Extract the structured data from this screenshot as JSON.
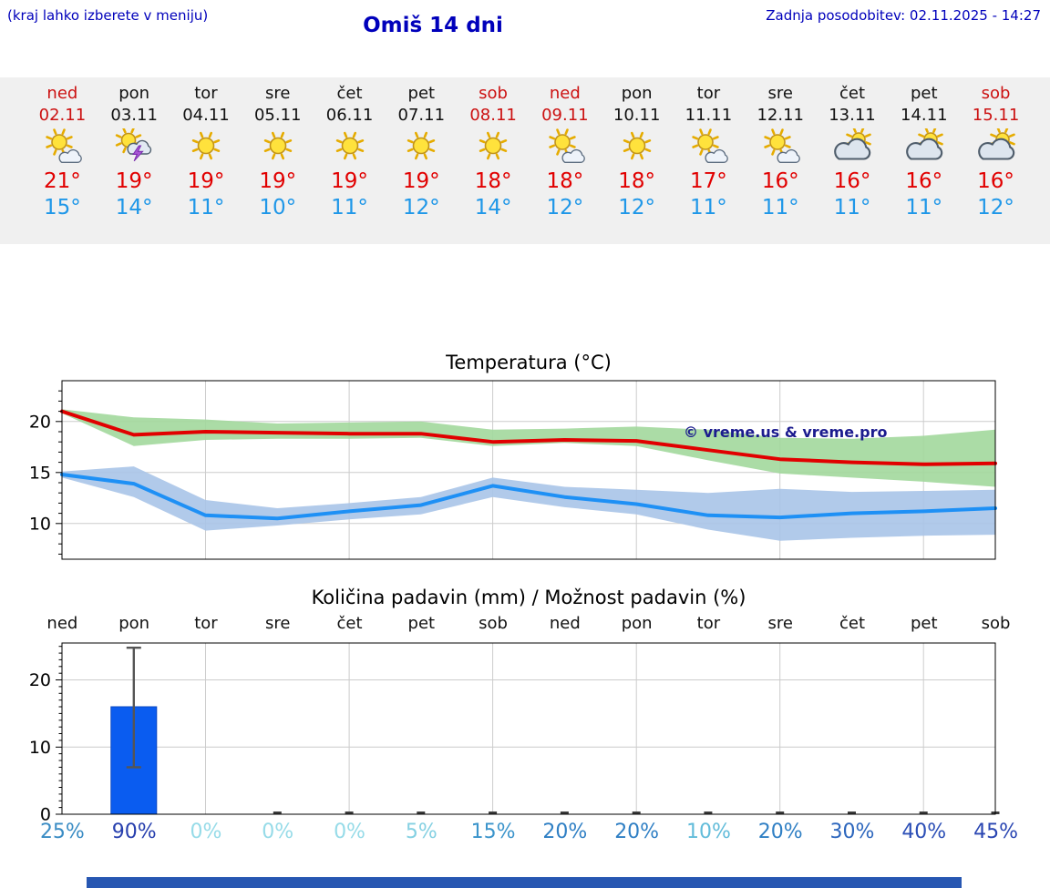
{
  "header": {
    "menu_note": "(kraj lahko izberete v meniju)",
    "title": "Omiš 14 dni",
    "last_update": "Zadnja posodobitev: 02.11.2025 - 14:27"
  },
  "colors": {
    "header_blue": "#0000bb",
    "weekend_red": "#cc1111",
    "high_temp_red": "#e10000",
    "low_temp_blue": "#1f97e8",
    "strip_bg": "#f0f0f0",
    "bottom_bar_blue": "#2757b2"
  },
  "days": [
    {
      "name": "ned",
      "date": "02.11",
      "weekend": true,
      "icon": "sun-cloud",
      "high": "21°",
      "low": "15°"
    },
    {
      "name": "pon",
      "date": "03.11",
      "weekend": false,
      "icon": "sun-storm",
      "high": "19°",
      "low": "14°"
    },
    {
      "name": "tor",
      "date": "04.11",
      "weekend": false,
      "icon": "sun",
      "high": "19°",
      "low": "11°"
    },
    {
      "name": "sre",
      "date": "05.11",
      "weekend": false,
      "icon": "sun",
      "high": "19°",
      "low": "10°"
    },
    {
      "name": "čet",
      "date": "06.11",
      "weekend": false,
      "icon": "sun",
      "high": "19°",
      "low": "11°"
    },
    {
      "name": "pet",
      "date": "07.11",
      "weekend": false,
      "icon": "sun",
      "high": "19°",
      "low": "12°"
    },
    {
      "name": "sob",
      "date": "08.11",
      "weekend": true,
      "icon": "sun",
      "high": "18°",
      "low": "14°"
    },
    {
      "name": "ned",
      "date": "09.11",
      "weekend": true,
      "icon": "sun-cloud",
      "high": "18°",
      "low": "12°"
    },
    {
      "name": "pon",
      "date": "10.11",
      "weekend": false,
      "icon": "sun",
      "high": "18°",
      "low": "12°"
    },
    {
      "name": "tor",
      "date": "11.11",
      "weekend": false,
      "icon": "sun-cloud",
      "high": "17°",
      "low": "11°"
    },
    {
      "name": "sre",
      "date": "12.11",
      "weekend": false,
      "icon": "sun-cloud",
      "high": "16°",
      "low": "11°"
    },
    {
      "name": "čet",
      "date": "13.11",
      "weekend": false,
      "icon": "cloud-sun",
      "high": "16°",
      "low": "11°"
    },
    {
      "name": "pet",
      "date": "14.11",
      "weekend": false,
      "icon": "cloud-sun",
      "high": "16°",
      "low": "11°"
    },
    {
      "name": "sob",
      "date": "15.11",
      "weekend": true,
      "icon": "cloud-sun",
      "high": "16°",
      "low": "12°"
    }
  ],
  "chart_data": [
    {
      "type": "line",
      "title": "Temperatura (°C)",
      "categories": [
        "ned",
        "pon",
        "tor",
        "sre",
        "čet",
        "pet",
        "sob",
        "ned",
        "pon",
        "tor",
        "sre",
        "čet",
        "pet",
        "sob"
      ],
      "ylim": [
        6.5,
        24
      ],
      "yticks": [
        10,
        15,
        20
      ],
      "grid": true,
      "watermark": "© vreme.us & vreme.pro",
      "watermark_color": "#1b1b8e",
      "series": [
        {
          "name": "max-temp",
          "color": "#e10000",
          "values": [
            21.0,
            18.7,
            19.0,
            18.9,
            18.8,
            18.8,
            18.0,
            18.2,
            18.1,
            17.2,
            16.3,
            16.0,
            15.8,
            15.9
          ]
        },
        {
          "name": "min-temp",
          "color": "#1e90f5",
          "values": [
            14.8,
            13.9,
            10.8,
            10.5,
            11.2,
            11.8,
            13.7,
            12.6,
            11.9,
            10.8,
            10.6,
            11.0,
            11.2,
            11.5
          ]
        }
      ],
      "bands": [
        {
          "name": "max-range",
          "color": "#a2d89c",
          "hi": [
            21.2,
            20.4,
            20.2,
            19.8,
            19.9,
            20.0,
            19.2,
            19.3,
            19.5,
            19.2,
            18.4,
            18.3,
            18.6,
            19.2
          ],
          "lo": [
            20.8,
            17.6,
            18.2,
            18.3,
            18.3,
            18.4,
            17.6,
            17.9,
            17.6,
            16.2,
            14.9,
            14.5,
            14.1,
            13.6
          ]
        },
        {
          "name": "min-range",
          "color": "#a8c4e8",
          "hi": [
            15.1,
            15.6,
            12.3,
            11.5,
            12.0,
            12.6,
            14.5,
            13.6,
            13.3,
            13.0,
            13.4,
            13.1,
            13.2,
            13.3
          ],
          "lo": [
            14.5,
            12.6,
            9.3,
            9.8,
            10.4,
            10.9,
            12.6,
            11.6,
            10.9,
            9.4,
            8.3,
            8.6,
            8.8,
            8.9
          ]
        }
      ]
    },
    {
      "type": "bar",
      "title": "Količina padavin (mm) / Možnost padavin (%)",
      "categories": [
        "ned",
        "pon",
        "tor",
        "sre",
        "čet",
        "pet",
        "sob",
        "ned",
        "pon",
        "tor",
        "sre",
        "čet",
        "pet",
        "sob"
      ],
      "ylim": [
        0,
        25.5
      ],
      "yticks": [
        0,
        10,
        20
      ],
      "grid": true,
      "bar_color": "#0a5cf0",
      "bars_mm": [
        0,
        16,
        0,
        0,
        0,
        0,
        0,
        0,
        0,
        0,
        0,
        0,
        0,
        0
      ],
      "whiskers": [
        null,
        [
          7,
          24.8
        ],
        null,
        null,
        null,
        null,
        null,
        null,
        null,
        null,
        null,
        null,
        null,
        null
      ],
      "baseline_marks": [
        3,
        4,
        5,
        6,
        7,
        8,
        9,
        10,
        11,
        12,
        13
      ],
      "prob_labels": [
        {
          "text": "25%",
          "color": "#3a8cc4"
        },
        {
          "text": "90%",
          "color": "#2840ae"
        },
        {
          "text": "0%",
          "color": "#96dbe8"
        },
        {
          "text": "0%",
          "color": "#96dbe8"
        },
        {
          "text": "0%",
          "color": "#96dbe8"
        },
        {
          "text": "5%",
          "color": "#84d0e2"
        },
        {
          "text": "15%",
          "color": "#3b94cb"
        },
        {
          "text": "20%",
          "color": "#2f7fc4"
        },
        {
          "text": "20%",
          "color": "#2f7fc4"
        },
        {
          "text": "10%",
          "color": "#62bcda"
        },
        {
          "text": "20%",
          "color": "#2f7fc4"
        },
        {
          "text": "30%",
          "color": "#2c66bd"
        },
        {
          "text": "40%",
          "color": "#2b4eb6"
        },
        {
          "text": "45%",
          "color": "#2a46b2"
        }
      ]
    }
  ]
}
